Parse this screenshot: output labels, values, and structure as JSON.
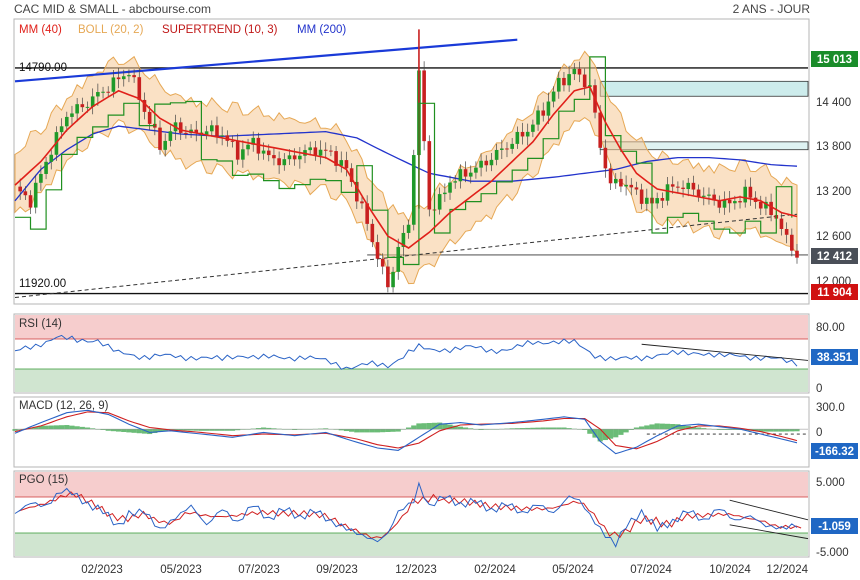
{
  "header": {
    "left": "CAC MID & SMALL - abcbourse.com",
    "right": "2 ANS - JOUR"
  },
  "colors": {
    "price": "#222222",
    "mm40": "#e0201a",
    "boll": "#e6a855",
    "supertrend_up": "#209020",
    "supertrend_down": "#c01818",
    "mm200": "#2233cc",
    "trendline": "#1a3ad8"
  },
  "chart_data": [
    {
      "type": "line",
      "panel": "price",
      "legend": [
        {
          "label": "MM (40)",
          "color": "#e0201a"
        },
        {
          "label": "BOLL (20, 2)",
          "color": "#e6a855"
        },
        {
          "label": "SUPERTREND (10, 3)",
          "color": "#c01818"
        },
        {
          "label": "MM (200)",
          "color": "#2233cc"
        }
      ],
      "y_ticks": [
        "15 013",
        "14 400",
        "13 800",
        "13 200",
        "12 600",
        "12 412",
        "12 000",
        "11 904"
      ],
      "ylim": [
        11800,
        15400
      ],
      "x_ticks": [
        "02/2023",
        "05/2023",
        "07/2023",
        "09/2023",
        "12/2023",
        "02/2024",
        "05/2024",
        "07/2024",
        "10/2024",
        "12/2024"
      ],
      "levels": [
        {
          "label": "14790.00",
          "value": 14790
        },
        {
          "label": "11920.00",
          "value": 11920
        }
      ],
      "last_price": "12 412",
      "level_badges": [
        "15 013",
        "11 904"
      ],
      "close_path": [
        [
          0,
          13250
        ],
        [
          3,
          13100
        ],
        [
          6,
          13600
        ],
        [
          10,
          14200
        ],
        [
          13,
          14300
        ],
        [
          16,
          14450
        ],
        [
          19,
          14600
        ],
        [
          22,
          14750
        ],
        [
          25,
          14250
        ],
        [
          28,
          13800
        ],
        [
          31,
          14050
        ],
        [
          34,
          13950
        ],
        [
          37,
          14000
        ],
        [
          40,
          13950
        ],
        [
          43,
          13700
        ],
        [
          46,
          13850
        ],
        [
          49,
          13650
        ],
        [
          52,
          13600
        ],
        [
          55,
          13700
        ],
        [
          58,
          13750
        ],
        [
          61,
          13700
        ],
        [
          64,
          13500
        ],
        [
          67,
          13000
        ],
        [
          70,
          12400
        ],
        [
          72,
          12000
        ],
        [
          74,
          12500
        ],
        [
          76,
          12800
        ],
        [
          78,
          14700
        ],
        [
          80,
          13000
        ],
        [
          82,
          13100
        ],
        [
          84,
          13350
        ],
        [
          87,
          13450
        ],
        [
          90,
          13550
        ],
        [
          93,
          13700
        ],
        [
          96,
          13850
        ],
        [
          99,
          14000
        ],
        [
          102,
          14250
        ],
        [
          105,
          14600
        ],
        [
          108,
          14750
        ],
        [
          111,
          14550
        ],
        [
          113,
          13800
        ],
        [
          115,
          13300
        ],
        [
          117,
          13350
        ],
        [
          120,
          13200
        ],
        [
          123,
          13050
        ],
        [
          126,
          13250
        ],
        [
          129,
          13300
        ],
        [
          132,
          13200
        ],
        [
          135,
          13100
        ],
        [
          138,
          13050
        ],
        [
          141,
          13200
        ],
        [
          144,
          13050
        ],
        [
          147,
          12900
        ],
        [
          149,
          12600
        ],
        [
          151,
          12412
        ]
      ],
      "mm40_path": [
        [
          0,
          13300
        ],
        [
          5,
          13600
        ],
        [
          10,
          14000
        ],
        [
          15,
          14300
        ],
        [
          20,
          14500
        ],
        [
          24,
          14400
        ],
        [
          28,
          14150
        ],
        [
          32,
          14000
        ],
        [
          36,
          13950
        ],
        [
          40,
          13900
        ],
        [
          44,
          13850
        ],
        [
          48,
          13800
        ],
        [
          52,
          13750
        ],
        [
          56,
          13700
        ],
        [
          60,
          13650
        ],
        [
          64,
          13500
        ],
        [
          68,
          13050
        ],
        [
          72,
          12650
        ],
        [
          76,
          12500
        ],
        [
          80,
          12700
        ],
        [
          84,
          12950
        ],
        [
          88,
          13150
        ],
        [
          92,
          13350
        ],
        [
          96,
          13600
        ],
        [
          100,
          13850
        ],
        [
          104,
          14200
        ],
        [
          108,
          14500
        ],
        [
          111,
          14550
        ],
        [
          114,
          14100
        ],
        [
          117,
          13750
        ],
        [
          120,
          13450
        ],
        [
          124,
          13250
        ],
        [
          128,
          13200
        ],
        [
          132,
          13150
        ],
        [
          136,
          13100
        ],
        [
          140,
          13150
        ],
        [
          144,
          13100
        ],
        [
          148,
          12950
        ],
        [
          151,
          12900
        ]
      ],
      "mm200_path": [
        [
          0,
          13100
        ],
        [
          5,
          13500
        ],
        [
          10,
          13750
        ],
        [
          15,
          13950
        ],
        [
          20,
          14050
        ],
        [
          26,
          14000
        ],
        [
          32,
          13950
        ],
        [
          40,
          13920
        ],
        [
          50,
          13950
        ],
        [
          60,
          13980
        ],
        [
          66,
          13900
        ],
        [
          72,
          13700
        ],
        [
          80,
          13450
        ],
        [
          88,
          13350
        ],
        [
          96,
          13350
        ],
        [
          104,
          13400
        ],
        [
          110,
          13450
        ],
        [
          116,
          13500
        ],
        [
          122,
          13600
        ],
        [
          128,
          13650
        ],
        [
          134,
          13650
        ],
        [
          140,
          13620
        ],
        [
          146,
          13560
        ],
        [
          151,
          13540
        ]
      ],
      "trendline_path": [
        [
          0,
          14620
        ],
        [
          97,
          15150
        ]
      ],
      "support_path": [
        [
          0,
          11870
        ],
        [
          151,
          12930
        ]
      ],
      "resistance_zones": [
        {
          "from": 14430,
          "to": 14620
        },
        {
          "from": 13750,
          "to": 13850
        }
      ]
    },
    {
      "type": "line",
      "panel": "RSI",
      "title": "RSI (14)",
      "ylim": [
        0,
        100
      ],
      "y_ticks": [
        "80.00",
        "38.351",
        "0"
      ],
      "last_value": "38.351",
      "path": [
        [
          0,
          52
        ],
        [
          4,
          60
        ],
        [
          8,
          72
        ],
        [
          12,
          66
        ],
        [
          16,
          68
        ],
        [
          20,
          50
        ],
        [
          24,
          46
        ],
        [
          28,
          48
        ],
        [
          32,
          44
        ],
        [
          36,
          46
        ],
        [
          40,
          42
        ],
        [
          44,
          48
        ],
        [
          48,
          45
        ],
        [
          52,
          44
        ],
        [
          56,
          46
        ],
        [
          60,
          40
        ],
        [
          64,
          32
        ],
        [
          68,
          36
        ],
        [
          72,
          34
        ],
        [
          76,
          52
        ],
        [
          78,
          58
        ],
        [
          80,
          54
        ],
        [
          84,
          56
        ],
        [
          88,
          58
        ],
        [
          92,
          54
        ],
        [
          96,
          56
        ],
        [
          100,
          64
        ],
        [
          104,
          66
        ],
        [
          108,
          64
        ],
        [
          112,
          48
        ],
        [
          116,
          42
        ],
        [
          120,
          44
        ],
        [
          124,
          48
        ],
        [
          128,
          50
        ],
        [
          132,
          52
        ],
        [
          136,
          46
        ],
        [
          140,
          48
        ],
        [
          144,
          44
        ],
        [
          148,
          42
        ],
        [
          151,
          38.351
        ]
      ]
    },
    {
      "type": "line",
      "panel": "MACD",
      "title": "MACD (12, 26, 9)",
      "ylim": [
        -450,
        380
      ],
      "y_ticks": [
        "300.0",
        "0",
        "-166.32"
      ],
      "last_value": "-166.32",
      "macd_path": [
        [
          0,
          -50
        ],
        [
          5,
          80
        ],
        [
          10,
          200
        ],
        [
          14,
          230
        ],
        [
          18,
          180
        ],
        [
          22,
          60
        ],
        [
          26,
          -40
        ],
        [
          30,
          -20
        ],
        [
          36,
          -60
        ],
        [
          42,
          -100
        ],
        [
          48,
          -40
        ],
        [
          54,
          -80
        ],
        [
          60,
          -40
        ],
        [
          66,
          -160
        ],
        [
          70,
          -230
        ],
        [
          74,
          -260
        ],
        [
          78,
          -100
        ],
        [
          82,
          60
        ],
        [
          86,
          80
        ],
        [
          90,
          50
        ],
        [
          96,
          80
        ],
        [
          102,
          120
        ],
        [
          106,
          150
        ],
        [
          110,
          120
        ],
        [
          113,
          -150
        ],
        [
          116,
          -300
        ],
        [
          120,
          -220
        ],
        [
          124,
          -80
        ],
        [
          128,
          40
        ],
        [
          132,
          60
        ],
        [
          136,
          30
        ],
        [
          140,
          0
        ],
        [
          144,
          -60
        ],
        [
          148,
          -120
        ],
        [
          151,
          -166.32
        ]
      ],
      "signal_path": [
        [
          0,
          -30
        ],
        [
          5,
          40
        ],
        [
          10,
          150
        ],
        [
          14,
          210
        ],
        [
          18,
          200
        ],
        [
          22,
          100
        ],
        [
          26,
          20
        ],
        [
          30,
          -10
        ],
        [
          36,
          -40
        ],
        [
          42,
          -80
        ],
        [
          48,
          -60
        ],
        [
          54,
          -70
        ],
        [
          60,
          -50
        ],
        [
          66,
          -120
        ],
        [
          70,
          -190
        ],
        [
          74,
          -230
        ],
        [
          78,
          -170
        ],
        [
          82,
          -20
        ],
        [
          86,
          50
        ],
        [
          90,
          60
        ],
        [
          96,
          70
        ],
        [
          102,
          100
        ],
        [
          106,
          130
        ],
        [
          110,
          130
        ],
        [
          113,
          0
        ],
        [
          116,
          -200
        ],
        [
          120,
          -240
        ],
        [
          124,
          -150
        ],
        [
          128,
          -20
        ],
        [
          132,
          40
        ],
        [
          136,
          40
        ],
        [
          140,
          10
        ],
        [
          144,
          -30
        ],
        [
          148,
          -90
        ],
        [
          151,
          -140
        ]
      ]
    },
    {
      "type": "line",
      "panel": "PGO",
      "title": "PGO (15)",
      "ylim": [
        -5.6,
        6
      ],
      "y_ticks": [
        "5.000",
        "-1.059",
        "-5.000"
      ],
      "last_value": "-1.059",
      "path": [
        [
          0,
          0
        ],
        [
          3,
          1.5
        ],
        [
          6,
          1
        ],
        [
          9,
          3.2
        ],
        [
          11,
          3
        ],
        [
          14,
          1.2
        ],
        [
          17,
          0.5
        ],
        [
          20,
          -1.8
        ],
        [
          22,
          0
        ],
        [
          25,
          0.4
        ],
        [
          28,
          -2.2
        ],
        [
          31,
          -0.5
        ],
        [
          34,
          1.2
        ],
        [
          37,
          -1.5
        ],
        [
          40,
          0.8
        ],
        [
          43,
          -1.2
        ],
        [
          46,
          1.5
        ],
        [
          49,
          -0.8
        ],
        [
          52,
          1
        ],
        [
          55,
          -0.5
        ],
        [
          58,
          0.7
        ],
        [
          61,
          -1
        ],
        [
          64,
          -1.8
        ],
        [
          67,
          -2.8
        ],
        [
          70,
          -3.6
        ],
        [
          72,
          -2.5
        ],
        [
          74,
          0.5
        ],
        [
          77,
          2
        ],
        [
          78,
          4.2
        ],
        [
          80,
          1.2
        ],
        [
          83,
          2.8
        ],
        [
          86,
          1.4
        ],
        [
          89,
          2.2
        ],
        [
          92,
          0.6
        ],
        [
          95,
          1.8
        ],
        [
          98,
          0.3
        ],
        [
          101,
          1.7
        ],
        [
          104,
          0.4
        ],
        [
          107,
          2.8
        ],
        [
          109,
          2.2
        ],
        [
          112,
          -0.8
        ],
        [
          114,
          -2.6
        ],
        [
          116,
          -3.8
        ],
        [
          118,
          -1.2
        ],
        [
          121,
          0.5
        ],
        [
          124,
          -1.5
        ],
        [
          127,
          -0.8
        ],
        [
          130,
          1
        ],
        [
          133,
          -0.6
        ],
        [
          136,
          1.3
        ],
        [
          139,
          -0.5
        ],
        [
          142,
          0.2
        ],
        [
          145,
          -1.2
        ],
        [
          148,
          -1.5
        ],
        [
          151,
          -1.059
        ]
      ]
    }
  ]
}
